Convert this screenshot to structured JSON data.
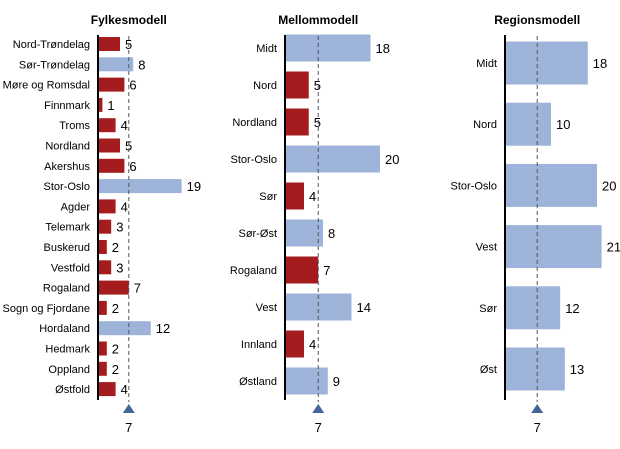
{
  "colors": {
    "below_or_equal_ref": "#a51c1f",
    "above_ref": "#9db3d9",
    "marker": "#44659a",
    "axis": "#000000"
  },
  "chart_data": [
    {
      "type": "bar",
      "orientation": "horizontal",
      "title": "Fylkesmodell",
      "reference_value": 7,
      "reference_label": "7",
      "categories": [
        "Nord-Trøndelag",
        "Sør-Trøndelag",
        "Møre og Romsdal",
        "Finnmark",
        "Troms",
        "Nordland",
        "Akershus",
        "Stor-Oslo",
        "Agder",
        "Telemark",
        "Buskerud",
        "Vestfold",
        "Rogaland",
        "Sogn og Fjordane",
        "Hordaland",
        "Hedmark",
        "Oppland",
        "Østfold"
      ],
      "values": [
        5,
        8,
        6,
        1,
        4,
        5,
        6,
        19,
        4,
        3,
        2,
        3,
        7,
        2,
        12,
        2,
        2,
        4
      ],
      "grid": false
    },
    {
      "type": "bar",
      "orientation": "horizontal",
      "title": "Mellommodell",
      "reference_value": 7,
      "reference_label": "7",
      "categories": [
        "Midt",
        "Nord",
        "Nordland",
        "Stor-Oslo",
        "Sør",
        "Sør-Øst",
        "Rogaland",
        "Vest",
        "Innland",
        "Østland"
      ],
      "values": [
        18,
        5,
        5,
        20,
        4,
        8,
        7,
        14,
        4,
        9
      ],
      "grid": false
    },
    {
      "type": "bar",
      "orientation": "horizontal",
      "title": "Regionsmodell",
      "reference_value": 7,
      "reference_label": "7",
      "categories": [
        "Midt",
        "Nord",
        "Stor-Oslo",
        "Vest",
        "Sør",
        "Øst"
      ],
      "values": [
        18,
        10,
        20,
        21,
        12,
        13
      ],
      "grid": false
    }
  ]
}
